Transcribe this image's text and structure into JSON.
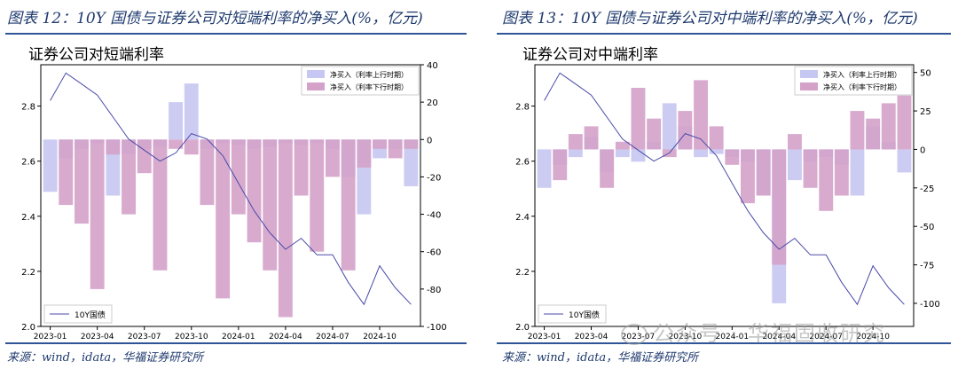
{
  "figures": [
    {
      "label": "图表 12：10Y 国债与证券公司对短端利率的净买入(%，亿元)"
    },
    {
      "label": "图表 13：10Y 国债与证券公司对中端利率的净买入(%，亿元)"
    }
  ],
  "source": "来源：wind，idata，华福证券研究所",
  "watermark": "公众号 · 华福固收研究",
  "chart_data": [
    {
      "type": "line",
      "title": "证券公司对短端利率",
      "xlabel": "",
      "ylabel": "",
      "x_ticks": [
        "2023-01",
        "2023-04",
        "2023-07",
        "2023-10",
        "2024-01",
        "2024-04",
        "2024-07",
        "2024-10"
      ],
      "ylim_left": [
        2.0,
        2.95
      ],
      "y_ticks_left": [
        "2.0",
        "2.2",
        "2.4",
        "2.6",
        "2.8"
      ],
      "ylim_right": [
        -100,
        40
      ],
      "y_ticks_right": [
        "40",
        "20",
        "0",
        "-20",
        "-40",
        "-60",
        "-80",
        "-100"
      ],
      "legend_top": [
        "净买入（利率上行时期）",
        "净买入（利率下行时期）"
      ],
      "legend_bottom": "10Y国债",
      "colors": {
        "line": "#4a4aa8",
        "up": "#c6c7f2",
        "down": "#d4a2c9"
      },
      "series": [
        {
          "name": "10Y国债",
          "axis": "left",
          "x": [
            "2023-01",
            "2023-02",
            "2023-03",
            "2023-04",
            "2023-05",
            "2023-06",
            "2023-07",
            "2023-08",
            "2023-09",
            "2023-10",
            "2023-11",
            "2023-12",
            "2024-01",
            "2024-02",
            "2024-03",
            "2024-04",
            "2024-05",
            "2024-06",
            "2024-07",
            "2024-08",
            "2024-09",
            "2024-10",
            "2024-11",
            "2024-12"
          ],
          "values": [
            2.82,
            2.92,
            2.88,
            2.84,
            2.76,
            2.68,
            2.64,
            2.6,
            2.63,
            2.7,
            2.68,
            2.62,
            2.52,
            2.42,
            2.34,
            2.28,
            2.32,
            2.26,
            2.26,
            2.16,
            2.08,
            2.22,
            2.14,
            2.08
          ]
        },
        {
          "name": "净买入（利率上行时期）",
          "axis": "right",
          "x": [
            "2023-01",
            "2023-02",
            "2023-03",
            "2023-04",
            "2023-05",
            "2023-06",
            "2023-07",
            "2023-08",
            "2023-09",
            "2023-10",
            "2023-11",
            "2023-12",
            "2024-01",
            "2024-02",
            "2024-03",
            "2024-04",
            "2024-05",
            "2024-06",
            "2024-07",
            "2024-08",
            "2024-09",
            "2024-10",
            "2024-11",
            "2024-12"
          ],
          "values": [
            -28,
            -10,
            -5,
            -2,
            -30,
            -8,
            -5,
            -4,
            20,
            30,
            -5,
            -2,
            -3,
            -5,
            -4,
            -2,
            -3,
            -2,
            -5,
            -20,
            -40,
            -10,
            -5,
            -25
          ]
        },
        {
          "name": "净买入（利率下行时期）",
          "axis": "right",
          "x": [
            "2023-01",
            "2023-02",
            "2023-03",
            "2023-04",
            "2023-05",
            "2023-06",
            "2023-07",
            "2023-08",
            "2023-09",
            "2023-10",
            "2023-11",
            "2023-12",
            "2024-01",
            "2024-02",
            "2024-03",
            "2024-04",
            "2024-05",
            "2024-06",
            "2024-07",
            "2024-08",
            "2024-09",
            "2024-10",
            "2024-11",
            "2024-12"
          ],
          "values": [
            0,
            -35,
            -45,
            -80,
            -8,
            -40,
            -18,
            -70,
            -5,
            -8,
            -35,
            -85,
            -40,
            -55,
            -70,
            -95,
            -30,
            -60,
            -20,
            -70,
            -15,
            -5,
            -10,
            -5
          ]
        }
      ]
    },
    {
      "type": "line",
      "title": "证券公司对中端利率",
      "xlabel": "",
      "ylabel": "",
      "x_ticks": [
        "2023-01",
        "2023-04",
        "2023-07",
        "2023-10",
        "2024-01",
        "2024-04",
        "2024-07",
        "2024-10"
      ],
      "ylim_left": [
        2.0,
        2.95
      ],
      "y_ticks_left": [
        "2.0",
        "2.2",
        "2.4",
        "2.6",
        "2.8"
      ],
      "ylim_right": [
        -115,
        55
      ],
      "y_ticks_right": [
        "50",
        "25",
        "0",
        "-25",
        "-50",
        "-75",
        "-100"
      ],
      "legend_top": [
        "净买入（利率上行时期）",
        "净买入（利率下行时期）"
      ],
      "legend_bottom": "10Y国债",
      "colors": {
        "line": "#4a4aa8",
        "up": "#c6c7f2",
        "down": "#d4a2c9"
      },
      "series": [
        {
          "name": "10Y国债",
          "axis": "left",
          "x": [
            "2023-01",
            "2023-02",
            "2023-03",
            "2023-04",
            "2023-05",
            "2023-06",
            "2023-07",
            "2023-08",
            "2023-09",
            "2023-10",
            "2023-11",
            "2023-12",
            "2024-01",
            "2024-02",
            "2024-03",
            "2024-04",
            "2024-05",
            "2024-06",
            "2024-07",
            "2024-08",
            "2024-09",
            "2024-10",
            "2024-11",
            "2024-12"
          ],
          "values": [
            2.82,
            2.92,
            2.88,
            2.84,
            2.76,
            2.68,
            2.64,
            2.6,
            2.63,
            2.7,
            2.68,
            2.62,
            2.52,
            2.42,
            2.34,
            2.28,
            2.32,
            2.26,
            2.26,
            2.16,
            2.08,
            2.22,
            2.14,
            2.08
          ]
        },
        {
          "name": "净买入（利率上行时期）",
          "axis": "right",
          "x": [
            "2023-01",
            "2023-02",
            "2023-03",
            "2023-04",
            "2023-05",
            "2023-06",
            "2023-07",
            "2023-08",
            "2023-09",
            "2023-10",
            "2023-11",
            "2023-12",
            "2024-01",
            "2024-02",
            "2024-03",
            "2024-04",
            "2024-05",
            "2024-06",
            "2024-07",
            "2024-08",
            "2024-09",
            "2024-10",
            "2024-11",
            "2024-12"
          ],
          "values": [
            -25,
            -10,
            -5,
            8,
            -15,
            -5,
            -8,
            5,
            30,
            15,
            -5,
            -3,
            -5,
            -8,
            -30,
            -100,
            -20,
            -8,
            -5,
            -10,
            -30,
            15,
            5,
            -15
          ]
        },
        {
          "name": "净买入（利率下行时期）",
          "axis": "right",
          "x": [
            "2023-01",
            "2023-02",
            "2023-03",
            "2023-04",
            "2023-05",
            "2023-06",
            "2023-07",
            "2023-08",
            "2023-09",
            "2023-10",
            "2023-11",
            "2023-12",
            "2024-01",
            "2024-02",
            "2024-03",
            "2024-04",
            "2024-05",
            "2024-06",
            "2024-07",
            "2024-08",
            "2024-09",
            "2024-10",
            "2024-11",
            "2024-12"
          ],
          "values": [
            0,
            -20,
            10,
            15,
            -25,
            5,
            40,
            20,
            -5,
            25,
            45,
            15,
            -10,
            -35,
            -30,
            -75,
            10,
            -25,
            -40,
            -30,
            25,
            20,
            30,
            35
          ]
        }
      ]
    }
  ]
}
